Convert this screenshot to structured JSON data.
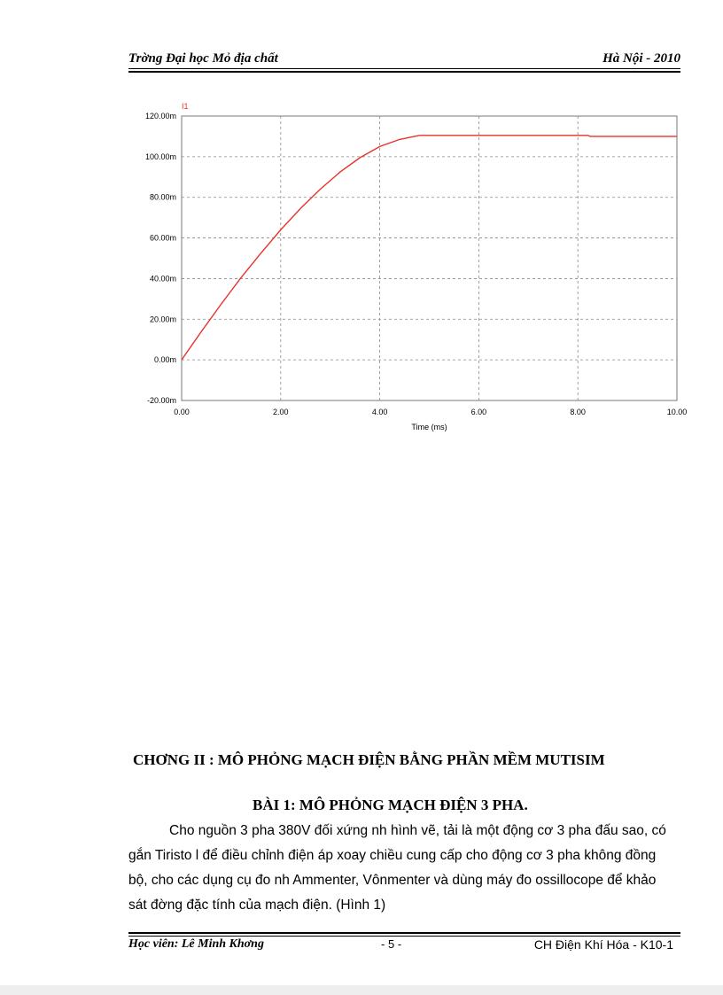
{
  "header": {
    "left": "Trờng  Đại học Mỏ địa chất",
    "right": "Hà Nội - 2010"
  },
  "chart_data": {
    "type": "line",
    "series": [
      {
        "name": "I1",
        "color": "#e8322a",
        "x": [
          0,
          0.4,
          0.8,
          1.2,
          1.6,
          2.0,
          2.4,
          2.8,
          3.2,
          3.6,
          4.0,
          4.4,
          4.8,
          5.5,
          6.0,
          7.0,
          8.0,
          8.2,
          8.25,
          9.0,
          10.0
        ],
        "y": [
          0,
          14,
          27.5,
          40.5,
          52.5,
          64,
          74.5,
          84,
          92.5,
          99.5,
          105,
          108.5,
          110.5,
          110.5,
          110.5,
          110.5,
          110.5,
          110.5,
          110,
          110,
          110
        ]
      }
    ],
    "xlabel": "Time (ms)",
    "xlim": [
      0,
      10
    ],
    "ylim": [
      -20,
      120
    ],
    "x_ticks": [
      "0.00",
      "2.00",
      "4.00",
      "6.00",
      "8.00",
      "10.00"
    ],
    "y_ticks": [
      "120.00m",
      "100.00m",
      "80.00m",
      "60.00m",
      "40.00m",
      "20.00m",
      "0.00m",
      "-20.00m"
    ],
    "grid": true,
    "grid_style": "dashed",
    "background": "#ffffff"
  },
  "chapter_title": "CHƠNG   II : MÔ PHỎNG MẠCH ĐIỆN BẰNG PHẦN MỀM MUTISIM",
  "lesson_title": "BÀI 1: MÔ PHỎNG MẠCH ĐIỆN 3 PHA.",
  "paragraph": "Cho nguồn 3 pha 380V đối xứng nh   hình vẽ, tải là một động cơ 3 pha đấu sao, có gắn Tiristo l để điều chỉnh điện áp xoay chiều cung cấp cho động cơ 3 pha không đồng bộ,  cho các dụng cụ đo nh   Ammenter, Vônmenter và dùng máy đo ossillocope để khảo sát đờng   đặc tính của mạch điện. (Hình  1)",
  "footer": {
    "author": "Học viên: Lê Minh Khơng",
    "page_number": "- 5 -",
    "course": "CH Điện Khí Hóa - K10-1"
  }
}
